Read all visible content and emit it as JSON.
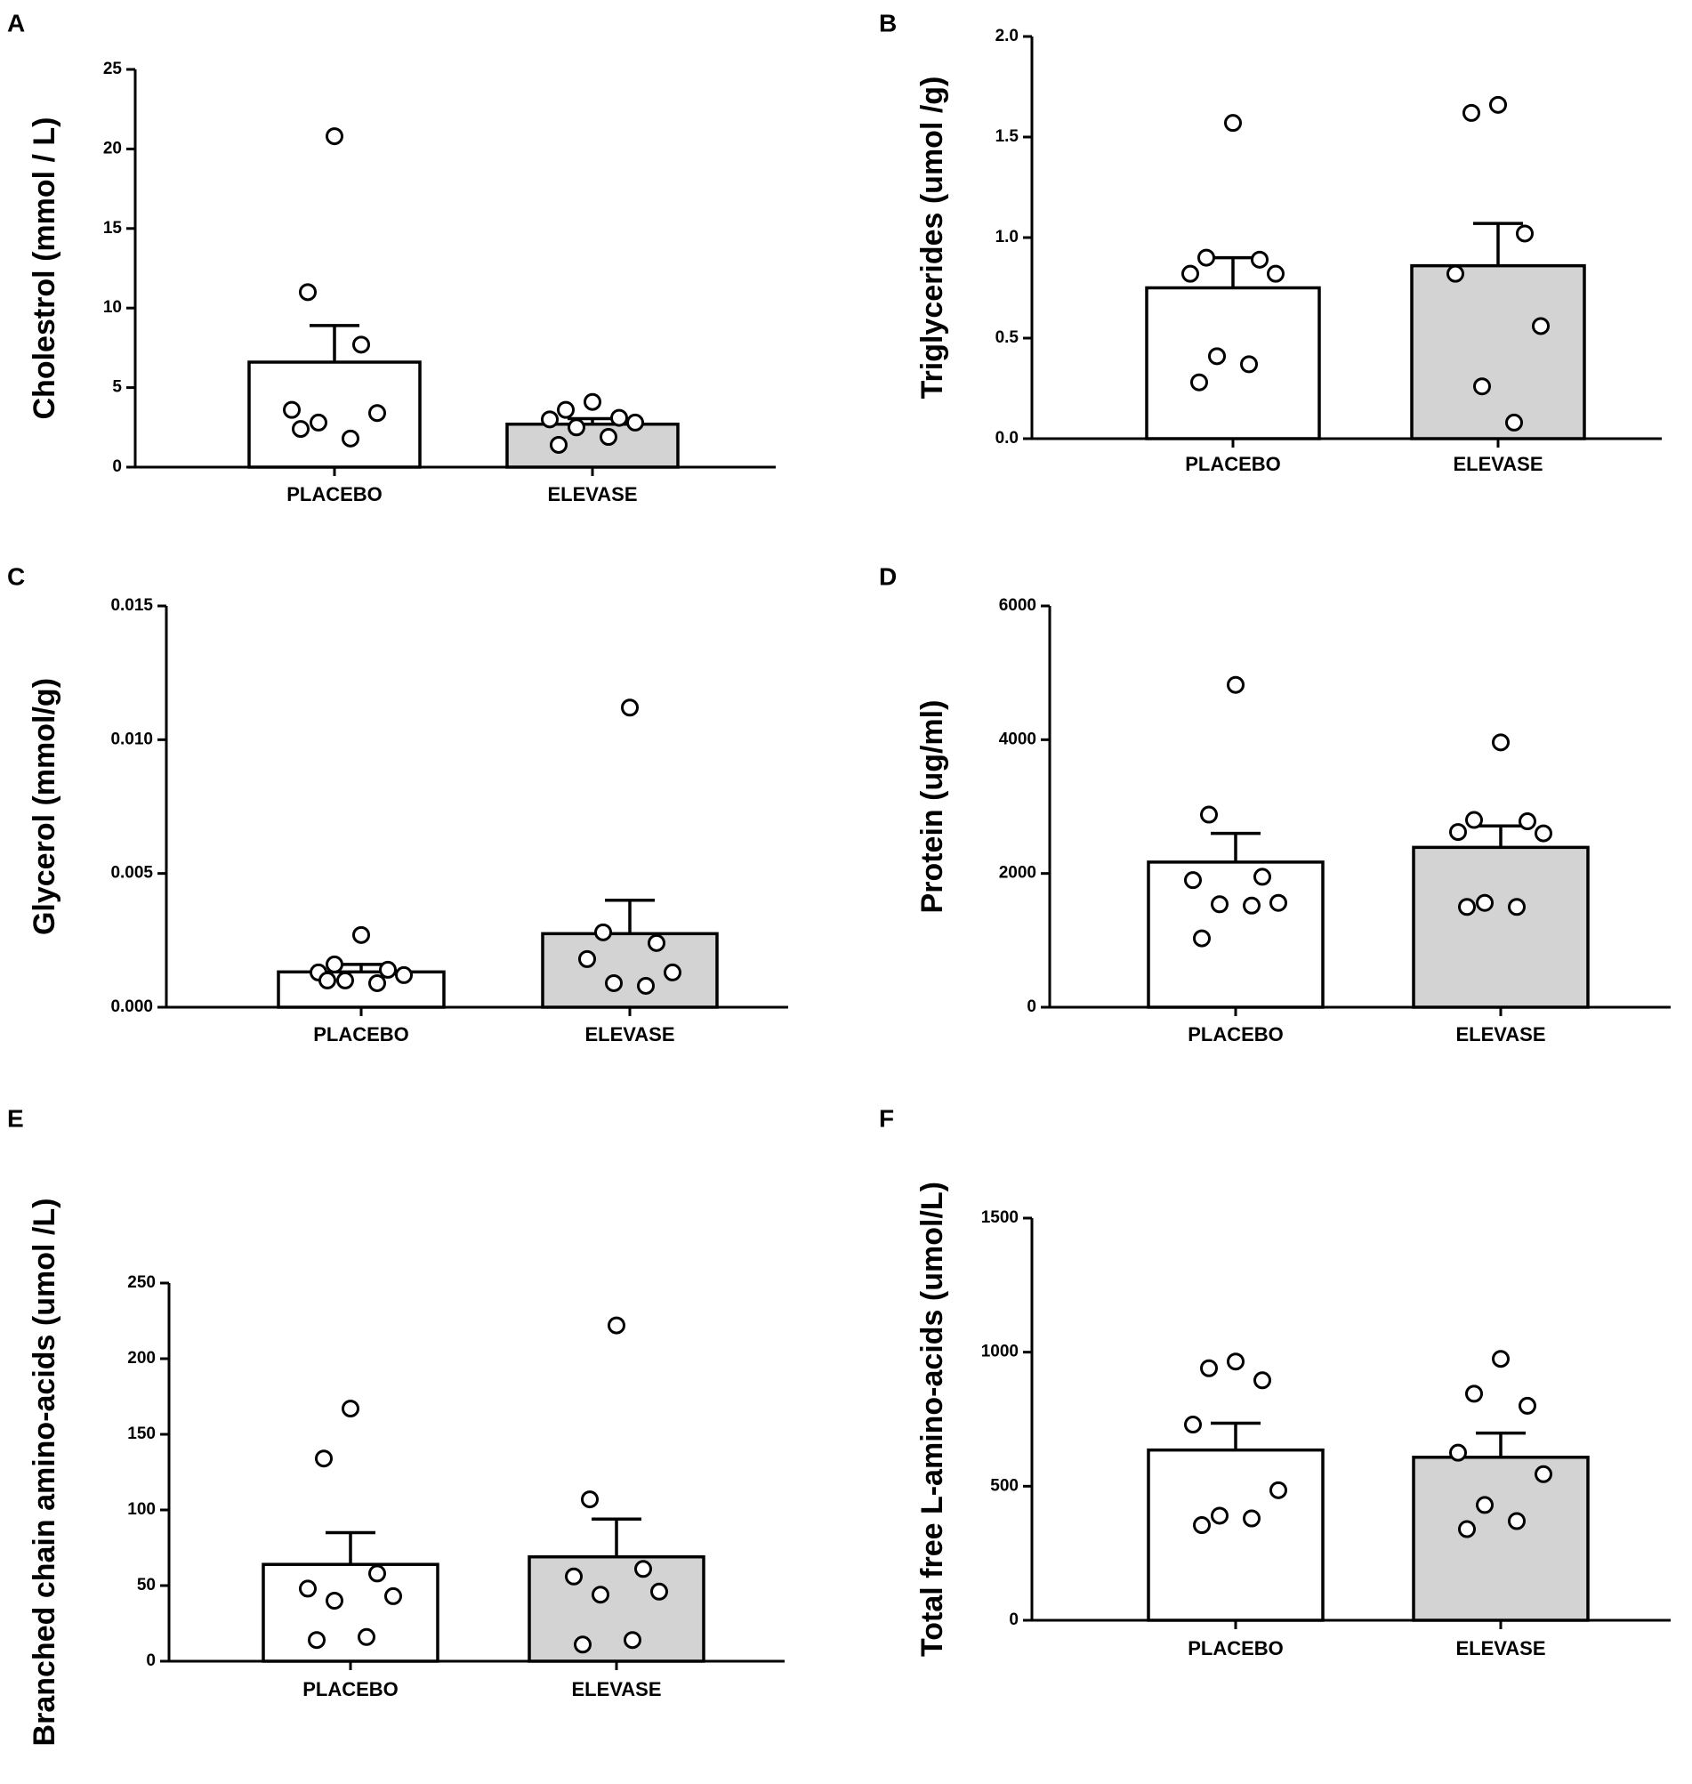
{
  "colors": {
    "axis": "#000000",
    "bar_placebo": "#ffffff",
    "bar_elevase": "#d3d3d3",
    "point_fill": "#ffffff",
    "point_stroke": "#000000"
  },
  "chart_data": [
    {
      "panel": "A",
      "type": "bar",
      "ylabel": "Cholestrol (mmol / L)",
      "ylim": [
        0,
        25
      ],
      "yticks": [
        0,
        5,
        10,
        15,
        20,
        25
      ],
      "ytick_labels": [
        "0",
        "5",
        "10",
        "15",
        "20",
        "25"
      ],
      "categories": [
        "PLACEBO",
        "ELEVASE"
      ],
      "means": [
        6.6,
        2.7
      ],
      "sem": [
        2.3,
        0.35
      ],
      "points": [
        [
          20.8,
          11.0,
          7.7,
          3.6,
          3.4,
          2.8,
          1.8,
          2.4
        ],
        [
          4.1,
          3.6,
          3.1,
          3.0,
          2.8,
          2.5,
          1.9,
          1.4
        ]
      ]
    },
    {
      "panel": "B",
      "type": "bar",
      "ylabel": "Triglycerides (umol /g)",
      "ylim": [
        0,
        2.0
      ],
      "yticks": [
        0,
        0.5,
        1.0,
        1.5,
        2.0
      ],
      "ytick_labels": [
        "0.0",
        "0.5",
        "1.0",
        "1.5",
        "2.0"
      ],
      "categories": [
        "PLACEBO",
        "ELEVASE"
      ],
      "means": [
        0.75,
        0.86
      ],
      "sem": [
        0.15,
        0.21
      ],
      "points": [
        [
          1.57,
          0.9,
          0.89,
          0.82,
          0.82,
          0.41,
          0.37,
          0.28
        ],
        [
          1.66,
          1.62,
          1.02,
          0.82,
          0.56,
          0.26,
          0.08
        ]
      ]
    },
    {
      "panel": "C",
      "type": "bar",
      "ylabel": "Glycerol (mmol/g)",
      "ylim": [
        0,
        0.015
      ],
      "yticks": [
        0,
        0.005,
        0.01,
        0.015
      ],
      "ytick_labels": [
        "0.000",
        "0.005",
        "0.010",
        "0.015"
      ],
      "categories": [
        "PLACEBO",
        "ELEVASE"
      ],
      "means": [
        0.00132,
        0.00275
      ],
      "sem": [
        0.00028,
        0.00125
      ],
      "points": [
        [
          0.0027,
          0.0016,
          0.0014,
          0.0013,
          0.0012,
          0.001,
          0.0009,
          0.001
        ],
        [
          0.0112,
          0.0028,
          0.0024,
          0.0018,
          0.0013,
          0.0009,
          0.0008
        ]
      ]
    },
    {
      "panel": "D",
      "type": "bar",
      "ylabel": "Protein (ug/ml)",
      "ylim": [
        0,
        6000
      ],
      "yticks": [
        0,
        2000,
        4000,
        6000
      ],
      "ytick_labels": [
        "0",
        "2000",
        "4000",
        "6000"
      ],
      "categories": [
        "PLACEBO",
        "ELEVASE"
      ],
      "means": [
        2170,
        2390
      ],
      "sem": [
        430,
        320
      ],
      "points": [
        [
          4820,
          2880,
          1950,
          1900,
          1560,
          1540,
          1520,
          1030
        ],
        [
          3960,
          2800,
          2780,
          2620,
          2600,
          1560,
          1500,
          1500
        ]
      ]
    },
    {
      "panel": "E",
      "type": "bar",
      "ylabel": "Branched chain amino-acids (umol /L)",
      "ylim": [
        0,
        250
      ],
      "yticks": [
        0,
        50,
        100,
        150,
        200,
        250
      ],
      "ytick_labels": [
        "0",
        "50",
        "100",
        "150",
        "200",
        "250"
      ],
      "categories": [
        "PLACEBO",
        "ELEVASE"
      ],
      "means": [
        64,
        69
      ],
      "sem": [
        21,
        25
      ],
      "points": [
        [
          167,
          134,
          58,
          48,
          43,
          40,
          16,
          14
        ],
        [
          222,
          107,
          61,
          56,
          46,
          44,
          14,
          11
        ]
      ]
    },
    {
      "panel": "F",
      "type": "bar",
      "ylabel": "Total free L-amino-acids (umol/L)",
      "ylim": [
        0,
        1500
      ],
      "yticks": [
        0,
        500,
        1000,
        1500
      ],
      "ytick_labels": [
        "0",
        "500",
        "1000",
        "1500"
      ],
      "categories": [
        "PLACEBO",
        "ELEVASE"
      ],
      "means": [
        635,
        608
      ],
      "sem": [
        100,
        90
      ],
      "points": [
        [
          965,
          940,
          895,
          730,
          485,
          390,
          380,
          355
        ],
        [
          975,
          845,
          800,
          625,
          545,
          430,
          370,
          340
        ]
      ]
    }
  ]
}
